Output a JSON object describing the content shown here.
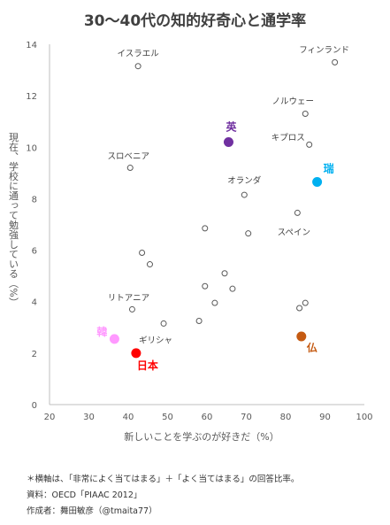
{
  "chart_data": {
    "type": "scatter",
    "title": "30〜40代の知的好奇心と通学率",
    "xlabel": "新しいことを学ぶのが好きだ（%）",
    "ylabel": "現在、学校に通って勉強している（%）",
    "xlim": [
      20,
      100
    ],
    "ylim": [
      0,
      14
    ],
    "xticks": [
      20,
      30,
      40,
      50,
      60,
      70,
      80,
      90,
      100
    ],
    "yticks": [
      0,
      2,
      4,
      6,
      8,
      10,
      12,
      14
    ],
    "grid": false,
    "points": [
      {
        "label": "イスラエル",
        "x": 42.5,
        "y": 13.15,
        "highlight": false
      },
      {
        "label": "フィンランド",
        "x": 92.5,
        "y": 13.3,
        "highlight": false
      },
      {
        "label": "ノルウェー",
        "x": 85.0,
        "y": 11.3,
        "highlight": false
      },
      {
        "label": "キプロス",
        "x": 86.0,
        "y": 10.1,
        "highlight": false
      },
      {
        "label": "英",
        "x": 65.5,
        "y": 10.2,
        "highlight": true,
        "color": "#7030a0"
      },
      {
        "label": "スロベニア",
        "x": 40.5,
        "y": 9.2,
        "highlight": false
      },
      {
        "label": "瑞",
        "x": 88.0,
        "y": 8.65,
        "highlight": true,
        "color": "#00b0f0"
      },
      {
        "label": "オランダ",
        "x": 69.5,
        "y": 8.15,
        "highlight": false
      },
      {
        "label": "",
        "x": 83.0,
        "y": 7.45,
        "highlight": false
      },
      {
        "label": "スペイン",
        "x": 83.0,
        "y": 7.45,
        "highlight": false
      },
      {
        "label": "",
        "x": 59.5,
        "y": 6.85,
        "highlight": false
      },
      {
        "label": "",
        "x": 70.5,
        "y": 6.65,
        "highlight": false
      },
      {
        "label": "",
        "x": 43.5,
        "y": 5.9,
        "highlight": false
      },
      {
        "label": "",
        "x": 45.5,
        "y": 5.45,
        "highlight": false
      },
      {
        "label": "",
        "x": 64.5,
        "y": 5.1,
        "highlight": false
      },
      {
        "label": "",
        "x": 59.5,
        "y": 4.6,
        "highlight": false
      },
      {
        "label": "",
        "x": 66.5,
        "y": 4.5,
        "highlight": false
      },
      {
        "label": "",
        "x": 62.0,
        "y": 3.95,
        "highlight": false
      },
      {
        "label": "",
        "x": 85.0,
        "y": 3.95,
        "highlight": false
      },
      {
        "label": "リトアニア",
        "x": 41.0,
        "y": 3.7,
        "highlight": false
      },
      {
        "label": "",
        "x": 83.5,
        "y": 3.75,
        "highlight": false
      },
      {
        "label": "",
        "x": 58.0,
        "y": 3.25,
        "highlight": false
      },
      {
        "label": "ギリシャ",
        "x": 49.0,
        "y": 3.15,
        "highlight": false
      },
      {
        "label": "韓",
        "x": 36.5,
        "y": 2.55,
        "highlight": true,
        "color": "#ff99ff"
      },
      {
        "label": "仏",
        "x": 84.0,
        "y": 2.65,
        "highlight": true,
        "color": "#c55a11"
      },
      {
        "label": "日本",
        "x": 42.0,
        "y": 2.0,
        "highlight": true,
        "color": "#ff0000"
      }
    ]
  },
  "notes": {
    "definition": "＊横軸は、「非常によく当てはまる」＋「よく当てはまる」の回答比率。",
    "source": "資料：OECD「PIAAC 2012」",
    "author": "作成者：舞田敏彦（@tmaita77）"
  }
}
